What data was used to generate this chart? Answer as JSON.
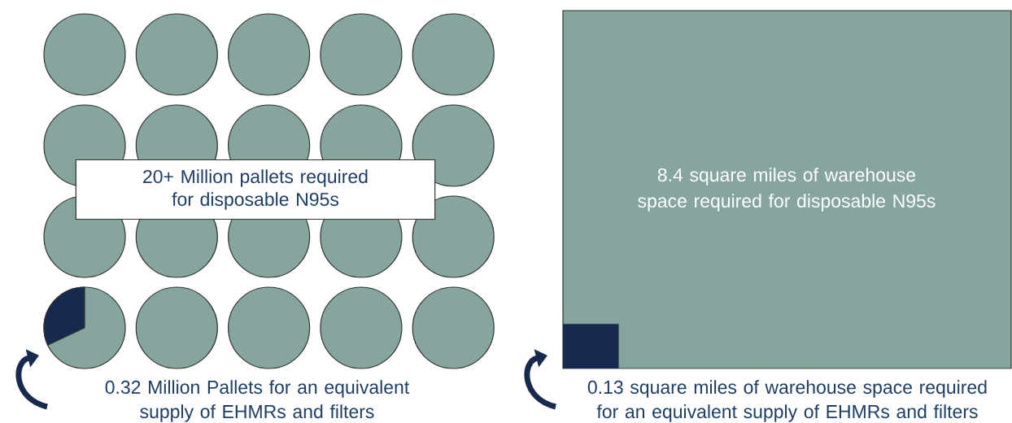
{
  "chart_data": [
    {
      "type": "other",
      "values": [
        20,
        0.32
      ],
      "value_labels": [
        "20+",
        "0.32"
      ],
      "colors": [
        "#86a59e",
        "#172a4e"
      ],
      "annotations": [
        "Million pallets required for disposable N95s",
        "Million Pallets for an equivalent supply of EHMRs and filters"
      ]
    },
    {
      "type": "other",
      "values": [
        8.4,
        0.13
      ],
      "value_labels": [
        "8.4",
        "0.13"
      ],
      "colors": [
        "#86a59e",
        "#172a4e"
      ],
      "annotations": [
        "square miles of warehouse space required for disposable N95s",
        "square miles of warehouse space required for an equivalent supply of EHMRs and filters"
      ]
    }
  ]
}
